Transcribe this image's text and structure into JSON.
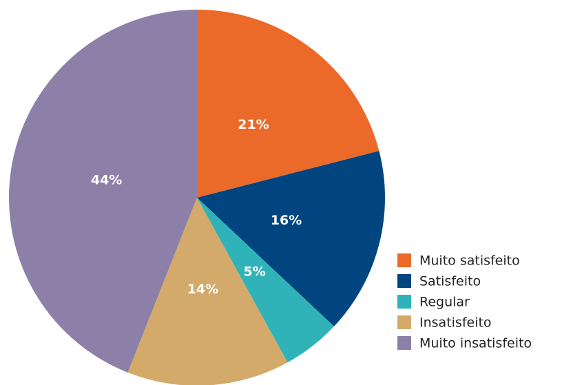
{
  "chart_data": {
    "type": "pie",
    "categories": [
      "Muito satisfeito",
      "Satisfeito",
      "Regular",
      "Insatisfeito",
      "Muito insatisfeito"
    ],
    "values": [
      21,
      16,
      5,
      14,
      44
    ],
    "value_labels": [
      "21%",
      "16%",
      "5%",
      "14%",
      "44%"
    ],
    "colors": [
      "#ec6a29",
      "#00457f",
      "#2fb3b8",
      "#d4aa6a",
      "#8c80a8"
    ],
    "legend": "right"
  }
}
